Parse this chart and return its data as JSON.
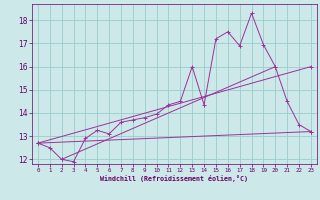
{
  "bg_color": "#cce8e8",
  "grid_color": "#99cccc",
  "line_color": "#993399",
  "marker": "+",
  "xlabel": "Windchill (Refroidissement éolien,°C)",
  "xlabel_color": "#660066",
  "tick_color": "#660066",
  "xlim": [
    -0.5,
    23.5
  ],
  "ylim": [
    11.8,
    18.7
  ],
  "yticks": [
    12,
    13,
    14,
    15,
    16,
    17,
    18
  ],
  "xticks": [
    0,
    1,
    2,
    3,
    4,
    5,
    6,
    7,
    8,
    9,
    10,
    11,
    12,
    13,
    14,
    15,
    16,
    17,
    18,
    19,
    20,
    21,
    22,
    23
  ],
  "series1_x": [
    0,
    1,
    2,
    3,
    4,
    5,
    6,
    7,
    8,
    9,
    10,
    11,
    12,
    13,
    14,
    15,
    16,
    17,
    18,
    19,
    20,
    21,
    22,
    23
  ],
  "series1_y": [
    12.7,
    12.5,
    12.0,
    11.9,
    12.9,
    13.25,
    13.1,
    13.6,
    13.7,
    13.8,
    13.95,
    14.35,
    14.5,
    16.0,
    14.35,
    17.2,
    17.5,
    16.9,
    18.3,
    16.95,
    16.0,
    14.5,
    13.5,
    13.2
  ],
  "series2_x": [
    0,
    23
  ],
  "series2_y": [
    12.7,
    16.0
  ],
  "series3_x": [
    0,
    23
  ],
  "series3_y": [
    12.7,
    13.2
  ],
  "series4_x": [
    2,
    20
  ],
  "series4_y": [
    12.0,
    16.0
  ]
}
